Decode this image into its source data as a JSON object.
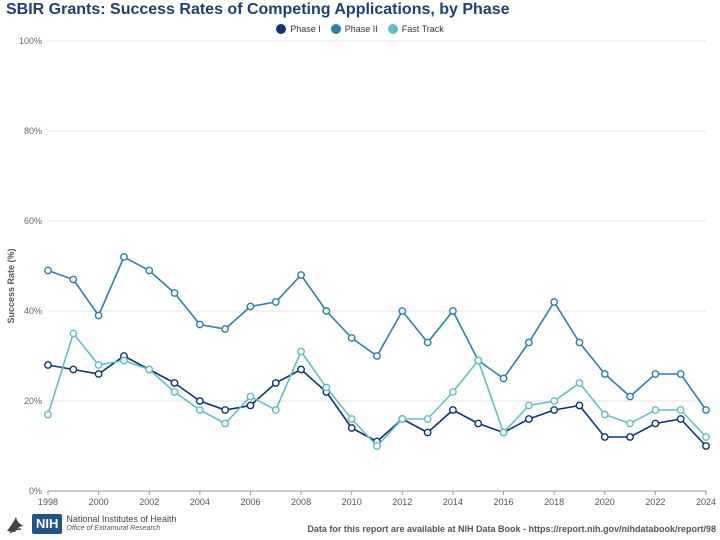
{
  "title": "SBIR Grants: Success Rates of Competing Applications, by Phase",
  "footer": {
    "nih_badge": "NIH",
    "nih_name": "National Institutes of Health",
    "nih_office": "Office of Extramural Research",
    "source": "Data for this report are available at NIH Data Book - https://report.nih.gov/nihdatabook/report/98"
  },
  "colors": {
    "phase1": "#0b3470",
    "phase2": "#2a7fab",
    "fasttrack": "#5fbfc9"
  },
  "chart_data": {
    "type": "line",
    "title": "SBIR Grants: Success Rates of Competing Applications, by Phase",
    "xlabel": "Fiscal Year",
    "ylabel": "Success Rate (%)",
    "ylim": [
      0,
      100
    ],
    "yticks": [
      0,
      20,
      40,
      60,
      80,
      100
    ],
    "ytick_labels": [
      "0%",
      "20%",
      "40%",
      "60%",
      "80%",
      "100%"
    ],
    "xticks": [
      1998,
      2000,
      2002,
      2004,
      2006,
      2008,
      2010,
      2012,
      2014,
      2016,
      2018,
      2020,
      2022,
      2024
    ],
    "xlim": [
      1998,
      2024
    ],
    "grid": true,
    "legend": "top-center",
    "x": [
      1998,
      1999,
      2000,
      2001,
      2002,
      2003,
      2004,
      2005,
      2006,
      2007,
      2008,
      2009,
      2010,
      2011,
      2012,
      2013,
      2014,
      2015,
      2016,
      2017,
      2018,
      2019,
      2020,
      2021,
      2022,
      2023,
      2024
    ],
    "series": [
      {
        "name": "Phase I",
        "color": "#0b3470",
        "values": [
          28,
          27,
          26,
          30,
          27,
          24,
          20,
          18,
          19,
          24,
          27,
          22,
          14,
          11,
          16,
          13,
          18,
          15,
          13,
          16,
          18,
          19,
          12,
          12,
          15,
          16,
          10
        ]
      },
      {
        "name": "Phase II",
        "color": "#2a7fab",
        "values": [
          49,
          47,
          39,
          52,
          49,
          44,
          37,
          36,
          41,
          42,
          48,
          40,
          34,
          30,
          40,
          33,
          40,
          29,
          25,
          33,
          42,
          33,
          26,
          21,
          26,
          26,
          18
        ]
      },
      {
        "name": "Fast Track",
        "color": "#5fbfc9",
        "values": [
          17,
          35,
          28,
          29,
          27,
          22,
          18,
          15,
          21,
          18,
          31,
          23,
          16,
          10,
          16,
          16,
          22,
          29,
          13,
          19,
          20,
          24,
          17,
          15,
          18,
          18,
          12
        ]
      }
    ]
  }
}
